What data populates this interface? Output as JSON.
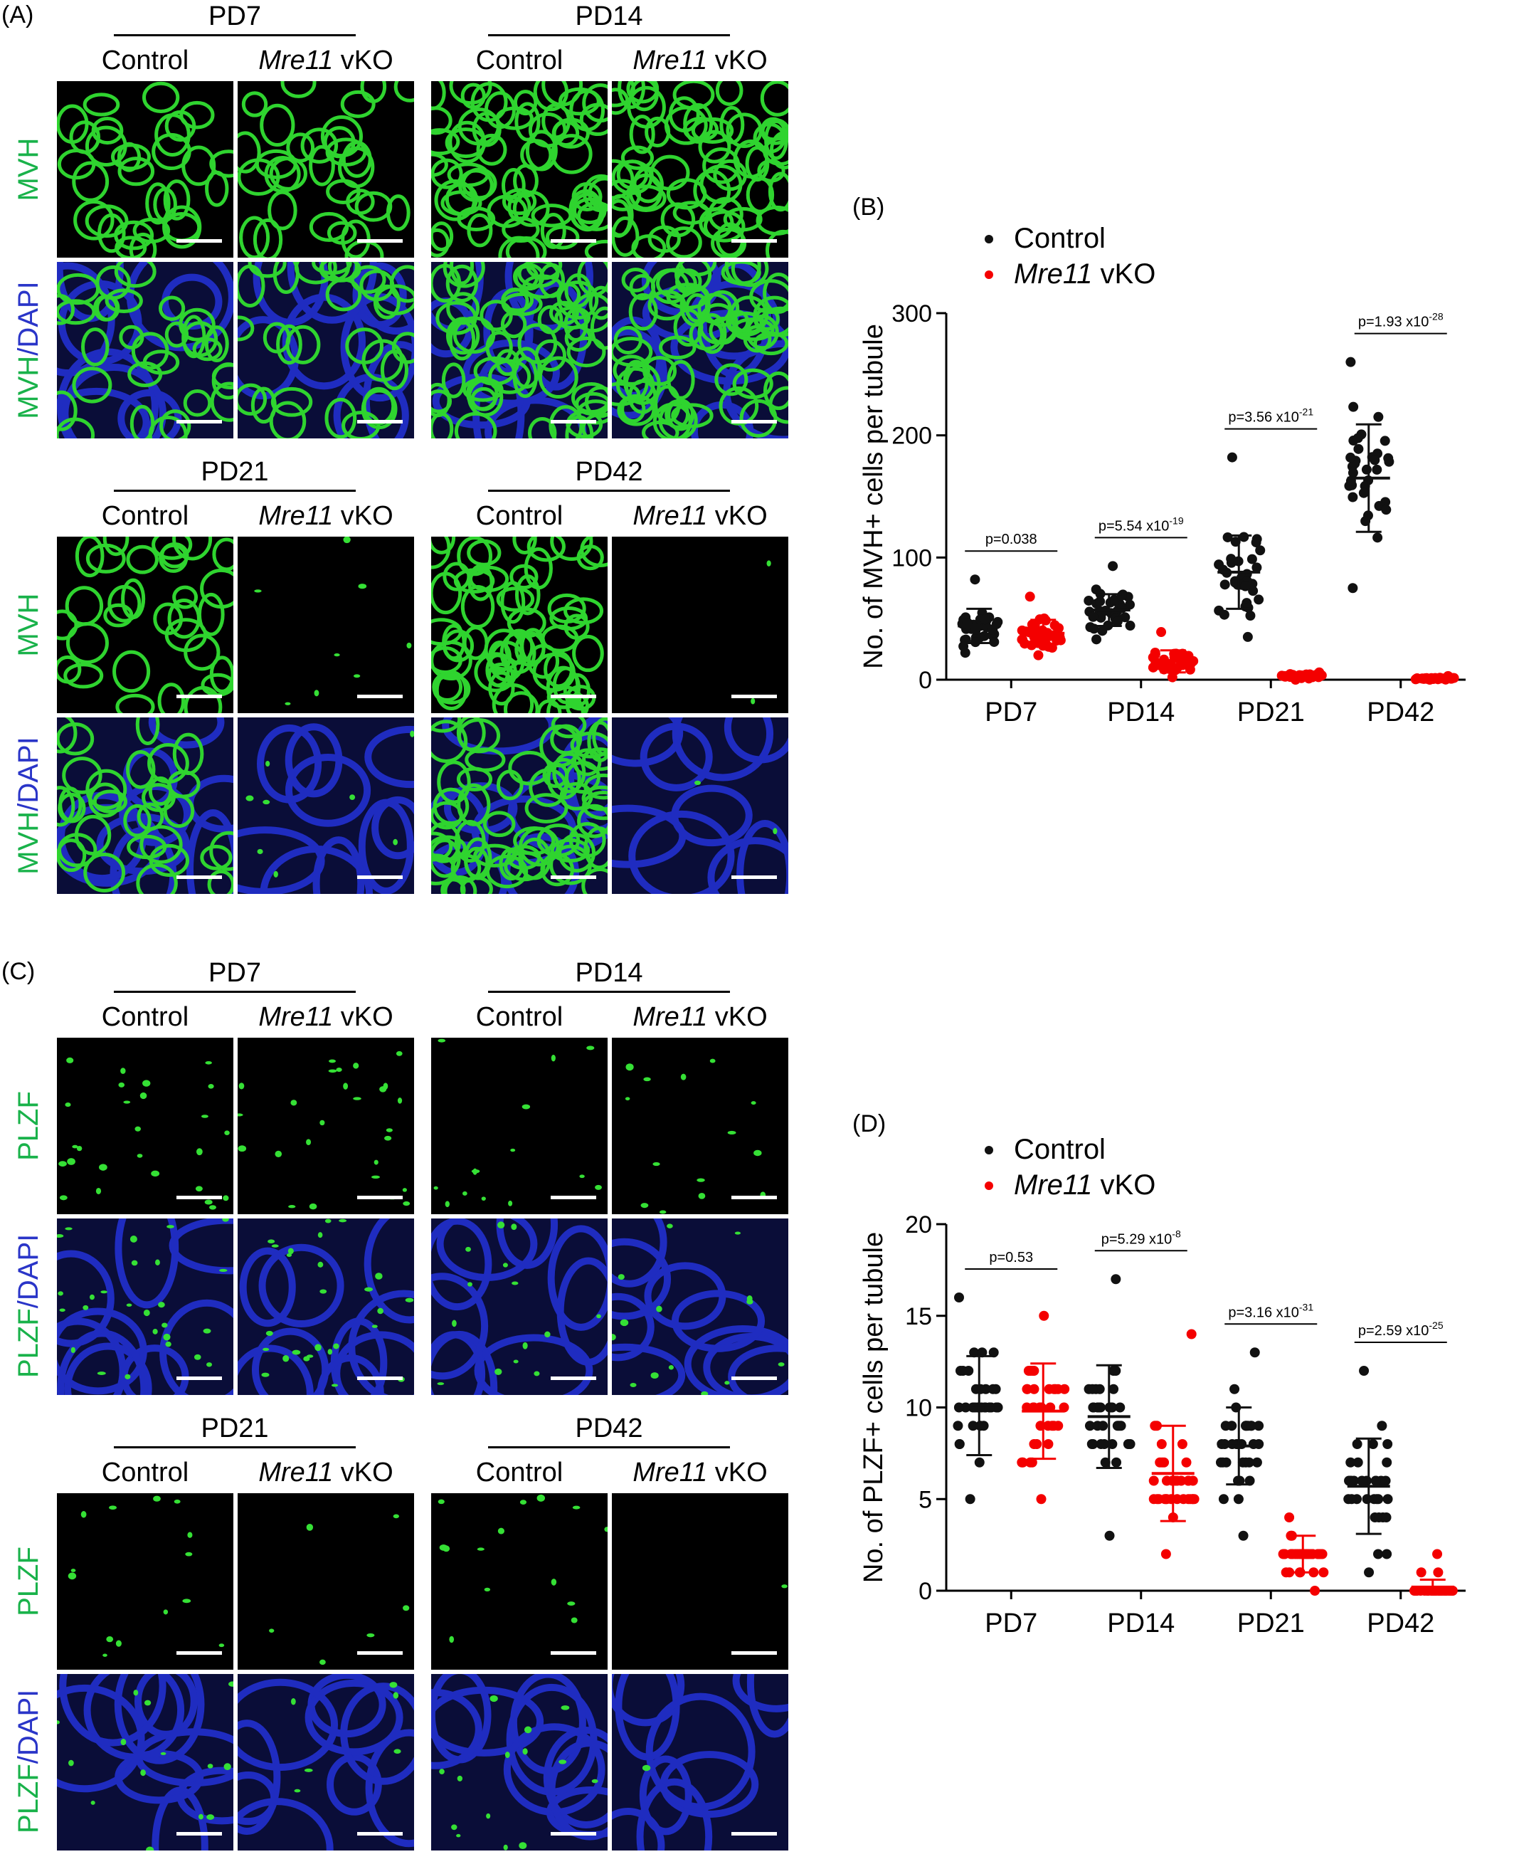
{
  "panel_labels": {
    "A": "(A)",
    "B": "(B)",
    "C": "(C)",
    "D": "(D)"
  },
  "conditions": {
    "control": "Control",
    "vko_gene": "Mre11",
    "vko_suffix": " vKO"
  },
  "timepoints": [
    "PD7",
    "PD14",
    "PD21",
    "PD42"
  ],
  "row_labels": {
    "mvh": "MVH",
    "mvh_dapi_a": "MVH",
    "mvh_dapi_b": "DAPI",
    "plzf": "PLZF",
    "plzf_dapi_a": "PLZF",
    "plzf_dapi_b": "DAPI"
  },
  "colors": {
    "control": "#111111",
    "vko": "#f40000",
    "stain_green": "#19b24a",
    "dapi_blue": "#2a35c8"
  },
  "chart_data": [
    {
      "id": "B",
      "type": "scatter",
      "ylabel": "No. of MVH+ cells per tubule",
      "ylim": [
        0,
        300
      ],
      "yticks": [
        0,
        100,
        200,
        300
      ],
      "categories": [
        "PD7",
        "PD14",
        "PD21",
        "PD42"
      ],
      "legend": [
        {
          "name_prefix": "",
          "name": "Control",
          "name_suffix": ""
        },
        {
          "name_prefix": "Mre11",
          "name": "",
          "name_suffix": " vKO"
        }
      ],
      "legend_position": "top-left",
      "p_values": [
        {
          "pair": "PD7",
          "text": "p=0.038",
          "exp": ""
        },
        {
          "pair": "PD14",
          "text": "p=5.54 x10",
          "exp": "-19"
        },
        {
          "pair": "PD21",
          "text": "p=3.56 x10",
          "exp": "-21"
        },
        {
          "pair": "PD42",
          "text": "p=1.93 x10",
          "exp": "-28"
        }
      ],
      "series": [
        {
          "name": "Control",
          "groups": [
            {
              "mean": 44,
              "sd": 14,
              "min": 22,
              "max": 82
            },
            {
              "mean": 57,
              "sd": 13,
              "min": 33,
              "max": 93
            },
            {
              "mean": 88,
              "sd": 30,
              "min": 35,
              "max": 182
            },
            {
              "mean": 165,
              "sd": 44,
              "min": 75,
              "max": 260
            }
          ]
        },
        {
          "name": "Mre11 vKO",
          "groups": [
            {
              "mean": 38,
              "sd": 11,
              "min": 20,
              "max": 68
            },
            {
              "mean": 15,
              "sd": 9,
              "min": 2,
              "max": 39
            },
            {
              "mean": 3,
              "sd": 1.5,
              "min": 0,
              "max": 6
            },
            {
              "mean": 1,
              "sd": 0.8,
              "min": 0,
              "max": 3
            }
          ]
        }
      ]
    },
    {
      "id": "D",
      "type": "scatter",
      "ylabel": "No. of PLZF+ cells per tubule",
      "ylim": [
        0,
        20
      ],
      "yticks": [
        0,
        5,
        10,
        15,
        20
      ],
      "categories": [
        "PD7",
        "PD14",
        "PD21",
        "PD42"
      ],
      "legend": [
        {
          "name_prefix": "",
          "name": "Control",
          "name_suffix": ""
        },
        {
          "name_prefix": "Mre11",
          "name": "",
          "name_suffix": " vKO"
        }
      ],
      "legend_position": "top-left",
      "p_values": [
        {
          "pair": "PD7",
          "text": "p=0.53",
          "exp": ""
        },
        {
          "pair": "PD14",
          "text": "p=5.29 x10",
          "exp": "-8"
        },
        {
          "pair": "PD21",
          "text": "p=3.16 x10",
          "exp": "-31"
        },
        {
          "pair": "PD42",
          "text": "p=2.59 x10",
          "exp": "-25"
        }
      ],
      "series": [
        {
          "name": "Control",
          "groups": [
            {
              "mean": 10.1,
              "sd": 2.7,
              "min": 5,
              "max": 16
            },
            {
              "mean": 9.5,
              "sd": 2.8,
              "min": 3,
              "max": 17
            },
            {
              "mean": 7.9,
              "sd": 2.1,
              "min": 3,
              "max": 13
            },
            {
              "mean": 5.7,
              "sd": 2.6,
              "min": 1,
              "max": 12
            }
          ]
        },
        {
          "name": "Mre11 vKO",
          "groups": [
            {
              "mean": 9.8,
              "sd": 2.6,
              "min": 5,
              "max": 15
            },
            {
              "mean": 6.4,
              "sd": 2.6,
              "min": 2,
              "max": 14
            },
            {
              "mean": 2.0,
              "sd": 1.0,
              "min": 0,
              "max": 4
            },
            {
              "mean": 0.2,
              "sd": 0.4,
              "min": 0,
              "max": 2
            }
          ]
        }
      ]
    }
  ]
}
